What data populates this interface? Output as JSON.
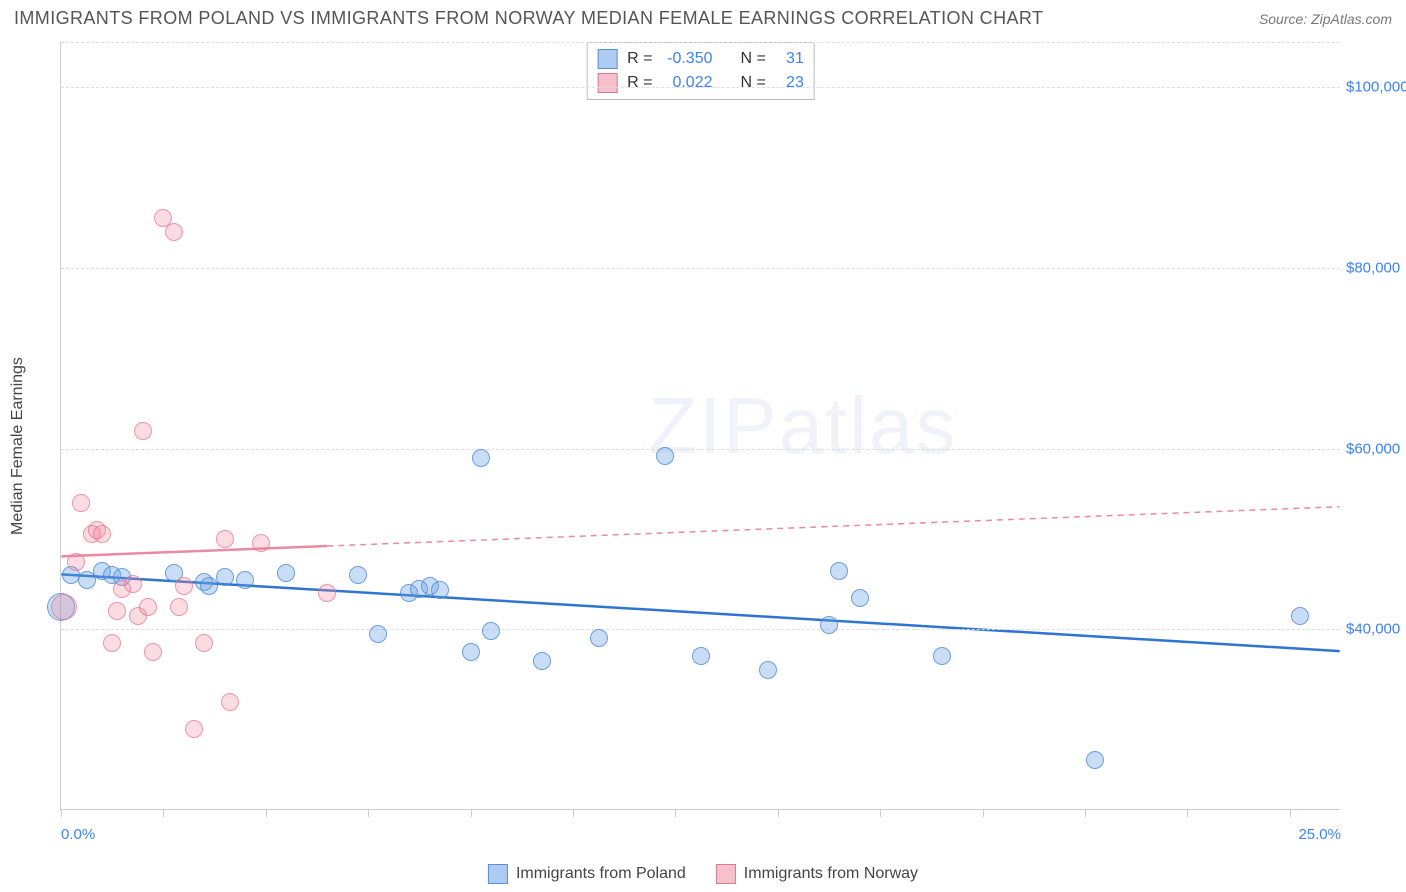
{
  "title": "IMMIGRANTS FROM POLAND VS IMMIGRANTS FROM NORWAY MEDIAN FEMALE EARNINGS CORRELATION CHART",
  "source_label": "Source: ZipAtlas.com",
  "yaxis_label": "Median Female Earnings",
  "watermark": "ZIPatlas",
  "chart": {
    "type": "scatter",
    "xlim": [
      0,
      25
    ],
    "ylim": [
      20000,
      105000
    ],
    "x_tick_positions": [
      0,
      2,
      4,
      6,
      8,
      10,
      12,
      14,
      16,
      18,
      20,
      22,
      24
    ],
    "x_labels": [
      {
        "x": 0,
        "text": "0.0%"
      },
      {
        "x": 25,
        "text": "25.0%"
      }
    ],
    "y_gridlines": [
      {
        "y": 40000,
        "label": "$40,000"
      },
      {
        "y": 60000,
        "label": "$60,000"
      },
      {
        "y": 80000,
        "label": "$80,000"
      },
      {
        "y": 100000,
        "label": "$100,000"
      }
    ],
    "y_grid_top": 105000,
    "background_color": "#ffffff",
    "grid_color": "#dddddd",
    "axis_color": "#cccccc",
    "point_radius": 9,
    "series": [
      {
        "name": "Immigrants from Poland",
        "color_fill": "rgba(100,160,230,0.35)",
        "color_stroke": "rgba(70,130,210,0.7)",
        "swatch_class": "swatch-blue",
        "point_class": "point-blue",
        "R": "-0.350",
        "N": "31",
        "regression": {
          "x1": 0,
          "y1": 46000,
          "x2": 25,
          "y2": 37500,
          "color": "#2f74d0",
          "dash_from_x": 25,
          "solid": true
        },
        "points": [
          {
            "x": 0.0,
            "y": 42500,
            "r": 14
          },
          {
            "x": 0.2,
            "y": 46000
          },
          {
            "x": 0.5,
            "y": 45500
          },
          {
            "x": 0.8,
            "y": 46500
          },
          {
            "x": 1.0,
            "y": 46000
          },
          {
            "x": 1.2,
            "y": 45800
          },
          {
            "x": 2.2,
            "y": 46200
          },
          {
            "x": 2.8,
            "y": 45200
          },
          {
            "x": 2.9,
            "y": 44800
          },
          {
            "x": 3.2,
            "y": 45800
          },
          {
            "x": 3.6,
            "y": 45500
          },
          {
            "x": 4.4,
            "y": 46200
          },
          {
            "x": 5.8,
            "y": 46000
          },
          {
            "x": 6.2,
            "y": 39500
          },
          {
            "x": 6.8,
            "y": 44000
          },
          {
            "x": 7.0,
            "y": 44500
          },
          {
            "x": 7.2,
            "y": 44800
          },
          {
            "x": 7.4,
            "y": 44300
          },
          {
            "x": 8.0,
            "y": 37500
          },
          {
            "x": 8.2,
            "y": 59000
          },
          {
            "x": 8.4,
            "y": 39800
          },
          {
            "x": 9.4,
            "y": 36500
          },
          {
            "x": 10.5,
            "y": 39000
          },
          {
            "x": 11.8,
            "y": 59200
          },
          {
            "x": 12.5,
            "y": 37000
          },
          {
            "x": 13.8,
            "y": 35500
          },
          {
            "x": 15.0,
            "y": 40500
          },
          {
            "x": 15.2,
            "y": 46500
          },
          {
            "x": 15.6,
            "y": 43500
          },
          {
            "x": 17.2,
            "y": 37000
          },
          {
            "x": 20.2,
            "y": 25500
          },
          {
            "x": 24.2,
            "y": 41500
          }
        ]
      },
      {
        "name": "Immigrants from Norway",
        "color_fill": "rgba(240,140,160,0.30)",
        "color_stroke": "rgba(230,110,140,0.65)",
        "swatch_class": "swatch-pink",
        "point_class": "point-pink",
        "R": "0.022",
        "N": "23",
        "regression": {
          "x1": 0,
          "y1": 48000,
          "x2": 25,
          "y2": 53500,
          "color": "#e98aa3",
          "dash_from_x": 5.2
        },
        "points": [
          {
            "x": 0.05,
            "y": 42500,
            "r": 13
          },
          {
            "x": 0.3,
            "y": 47500
          },
          {
            "x": 0.4,
            "y": 54000
          },
          {
            "x": 0.6,
            "y": 50500
          },
          {
            "x": 0.7,
            "y": 51000
          },
          {
            "x": 0.8,
            "y": 50500
          },
          {
            "x": 1.0,
            "y": 38500
          },
          {
            "x": 1.1,
            "y": 42000
          },
          {
            "x": 1.2,
            "y": 44500
          },
          {
            "x": 1.4,
            "y": 45000
          },
          {
            "x": 1.5,
            "y": 41500
          },
          {
            "x": 1.6,
            "y": 62000
          },
          {
            "x": 1.7,
            "y": 42500
          },
          {
            "x": 1.8,
            "y": 37500
          },
          {
            "x": 2.0,
            "y": 85500
          },
          {
            "x": 2.2,
            "y": 84000
          },
          {
            "x": 2.3,
            "y": 42500
          },
          {
            "x": 2.4,
            "y": 44800
          },
          {
            "x": 2.6,
            "y": 29000
          },
          {
            "x": 2.8,
            "y": 38500
          },
          {
            "x": 3.2,
            "y": 50000
          },
          {
            "x": 3.3,
            "y": 32000
          },
          {
            "x": 3.9,
            "y": 49500
          },
          {
            "x": 5.2,
            "y": 44000
          }
        ]
      }
    ]
  },
  "stats_legend": {
    "r_label": "R =",
    "n_label": "N ="
  },
  "bottom_legend": {
    "items": [
      {
        "swatch": "swatch-blue",
        "label": "Immigrants from Poland"
      },
      {
        "swatch": "swatch-pink",
        "label": "Immigrants from Norway"
      }
    ]
  }
}
